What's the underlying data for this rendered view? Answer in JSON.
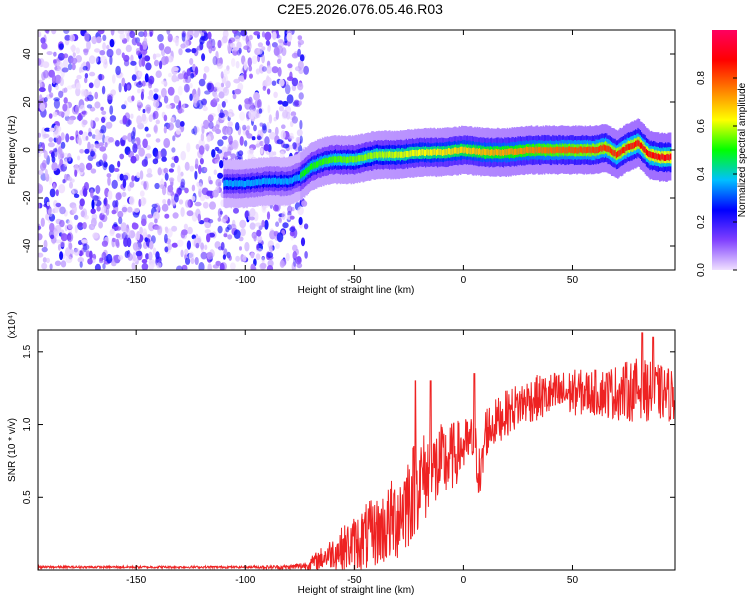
{
  "title": "C2E5.2026.076.05.46.R03",
  "chart_data": [
    {
      "type": "heatmap",
      "xlabel": "Height of straight line (km)",
      "ylabel": "Frequency (Hz)",
      "xlim": [
        -195,
        97
      ],
      "ylim": [
        -50,
        50
      ],
      "xticks": [
        -150,
        -100,
        -50,
        0,
        50
      ],
      "yticks": [
        -40,
        -20,
        0,
        20,
        40
      ],
      "grid": false,
      "colorbar": {
        "label": "Normalized spectral amplitude",
        "range": [
          0,
          1
        ],
        "ticks": [
          0.0,
          0.2,
          0.4,
          0.6,
          0.8
        ],
        "tick_labels": [
          "0.0",
          "0.2",
          "0.4",
          "0.6",
          "0.8"
        ],
        "colormap": [
          "#f0e0ff",
          "#8040ff",
          "#0000ff",
          "#00c0ff",
          "#00ff00",
          "#ffff00",
          "#ff8000",
          "#ff0000",
          "#ff0060"
        ]
      },
      "noise_region_x": [
        -195,
        -72
      ],
      "ridge": {
        "x": [
          -110,
          -100,
          -90,
          -80,
          -75,
          -70,
          -65,
          -60,
          -55,
          -50,
          -45,
          -40,
          -30,
          -20,
          -10,
          0,
          10,
          20,
          30,
          40,
          50,
          60,
          65,
          70,
          75,
          80,
          85,
          90,
          95
        ],
        "y": [
          -14,
          -14,
          -13,
          -13,
          -11,
          -7,
          -5,
          -4,
          -4,
          -4,
          -3,
          -2,
          -2,
          -1,
          -1,
          0,
          -1,
          -1,
          0,
          0,
          0,
          0,
          1,
          -2,
          1,
          3,
          -2,
          -3,
          -3
        ],
        "peak_amplitude": 0.9
      }
    },
    {
      "type": "line",
      "xlabel": "Height of straight line (km)",
      "ylabel": "SNR (10 * v/v)",
      "y_multiplier": "(x10⁴)",
      "xlim": [
        -195,
        97
      ],
      "ylim": [
        0,
        1.65
      ],
      "xticks": [
        -150,
        -100,
        -50,
        0,
        50
      ],
      "ytick_labels": [
        "0.5",
        "1.0",
        "1.5"
      ],
      "yticks": [
        0.5,
        1.0,
        1.5
      ],
      "grid": false,
      "series": [
        {
          "color": "#ee2222",
          "x": [
            -195,
            -150,
            -100,
            -80,
            -72,
            -65,
            -60,
            -55,
            -50,
            -45,
            -40,
            -35,
            -30,
            -25,
            -20,
            -15,
            -10,
            -5,
            0,
            5,
            8,
            10,
            15,
            20,
            25,
            30,
            40,
            50,
            60,
            70,
            80,
            90,
            97
          ],
          "y": [
            0.02,
            0.02,
            0.02,
            0.02,
            0.03,
            0.08,
            0.12,
            0.15,
            0.18,
            0.22,
            0.26,
            0.3,
            0.38,
            0.5,
            0.62,
            0.66,
            0.72,
            0.78,
            0.85,
            0.88,
            0.6,
            0.95,
            1.02,
            1.08,
            1.13,
            1.17,
            1.2,
            1.22,
            1.22,
            1.22,
            1.24,
            1.22,
            1.2
          ],
          "noise": [
            0.005,
            0.005,
            0.005,
            0.01,
            0.02,
            0.05,
            0.07,
            0.1,
            0.12,
            0.15,
            0.15,
            0.17,
            0.2,
            0.22,
            0.2,
            0.2,
            0.18,
            0.15,
            0.12,
            0.12,
            0.12,
            0.12,
            0.1,
            0.1,
            0.1,
            0.1,
            0.1,
            0.1,
            0.1,
            0.12,
            0.14,
            0.12,
            0.12
          ],
          "spikes": [
            {
              "x": -22,
              "y": 1.3
            },
            {
              "x": -15,
              "y": 1.3
            },
            {
              "x": 5,
              "y": 1.35
            },
            {
              "x": 82,
              "y": 1.63
            },
            {
              "x": 87,
              "y": 1.6
            }
          ]
        }
      ]
    }
  ]
}
